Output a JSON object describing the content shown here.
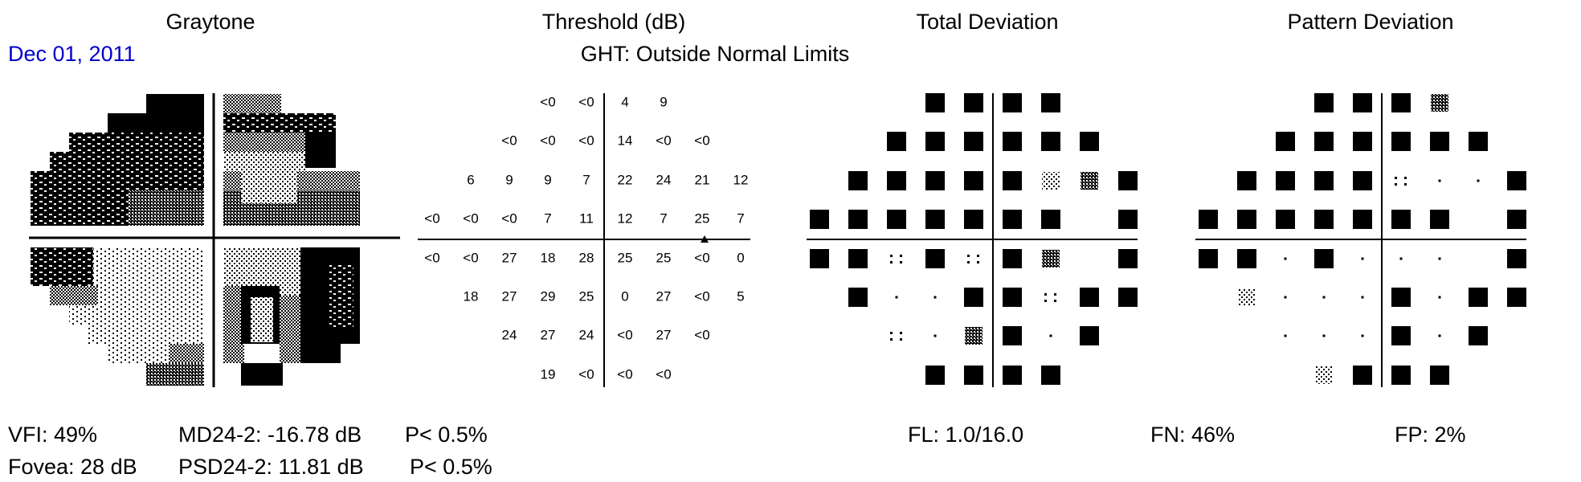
{
  "headers": {
    "graytone": "Graytone",
    "threshold": "Threshold (dB)",
    "total_deviation": "Total Deviation",
    "pattern_deviation": "Pattern Deviation"
  },
  "exam_date": "Dec 01, 2011",
  "ght": "GHT: Outside Normal Limits",
  "stats": {
    "vfi": "VFI: 49%",
    "md": "MD24-2: -16.78 dB",
    "md_p": "P< 0.5%",
    "fovea": "Fovea: 28 dB",
    "psd": "PSD24-2: 11.81 dB",
    "psd_p": "P< 0.5%",
    "fl": "FL: 1.0/16.0",
    "fn": "FN: 46%",
    "fp": "FP: 2%"
  },
  "threshold_grid": [
    [
      "",
      "",
      "<0",
      "<0",
      "4",
      "9",
      "",
      ""
    ],
    [
      "",
      "<0",
      "<0",
      "<0",
      "14",
      "<0",
      "<0",
      ""
    ],
    [
      "6",
      "9",
      "9",
      "7",
      "22",
      "24",
      "21",
      "12"
    ],
    [
      "<0",
      "<0",
      "<0",
      "7",
      "11",
      "12",
      "7",
      "25",
      "7"
    ],
    [
      "<0",
      "<0",
      "27",
      "18",
      "28",
      "25",
      "25",
      "<0",
      "0"
    ],
    [
      "",
      "18",
      "27",
      "29",
      "25",
      "0",
      "27",
      "<0",
      "5"
    ],
    [
      "",
      "",
      "24",
      "27",
      "24",
      "<0",
      "27",
      "<0",
      ""
    ],
    [
      "",
      "",
      "",
      "19",
      "<0",
      "<0",
      "<0",
      "",
      ""
    ]
  ],
  "blind_spot_marker": "blind-spot-triangle",
  "total_deviation_grid": [
    [
      "",
      "",
      "",
      "5",
      "5",
      "5",
      "5",
      "",
      ""
    ],
    [
      "",
      "",
      "5",
      "5",
      "5",
      "5",
      "5",
      "5",
      ""
    ],
    [
      "",
      "5",
      "5",
      "5",
      "5",
      "5",
      "2",
      "4",
      "5"
    ],
    [
      "5",
      "5",
      "5",
      "5",
      "5",
      "5",
      "5",
      "",
      "5"
    ],
    [
      "5",
      "5",
      "1",
      "5",
      "1",
      "5",
      "4",
      "",
      "5"
    ],
    [
      "",
      "5",
      "0",
      "0",
      "5",
      "5",
      "1",
      "5",
      "5"
    ],
    [
      "",
      "",
      "1",
      "0",
      "4",
      "5",
      "0",
      "5",
      ""
    ],
    [
      "",
      "",
      "",
      "5",
      "5",
      "5",
      "5",
      "",
      ""
    ]
  ],
  "pattern_deviation_grid": [
    [
      "",
      "",
      "",
      "5",
      "5",
      "5",
      "4",
      "",
      ""
    ],
    [
      "",
      "",
      "5",
      "5",
      "5",
      "5",
      "5",
      "5",
      ""
    ],
    [
      "",
      "5",
      "5",
      "5",
      "5",
      "1",
      "0",
      "0",
      "5"
    ],
    [
      "5",
      "5",
      "5",
      "5",
      "5",
      "5",
      "5",
      "",
      "5"
    ],
    [
      "5",
      "5",
      "0",
      "5",
      "0",
      "0",
      "0",
      "",
      "5"
    ],
    [
      "",
      "2",
      "0",
      "0",
      "0",
      "5",
      "0",
      "5",
      "5"
    ],
    [
      "",
      "",
      "0",
      "0",
      "0",
      "5",
      "0",
      "5",
      ""
    ],
    [
      "",
      "",
      "",
      "2",
      "5",
      "5",
      "5",
      "",
      ""
    ]
  ],
  "probability_legend": {
    "0": "dot",
    "1": "sparse-dots",
    "2": "light-checker",
    "4": "dense-checker",
    "5": "solid-black"
  }
}
